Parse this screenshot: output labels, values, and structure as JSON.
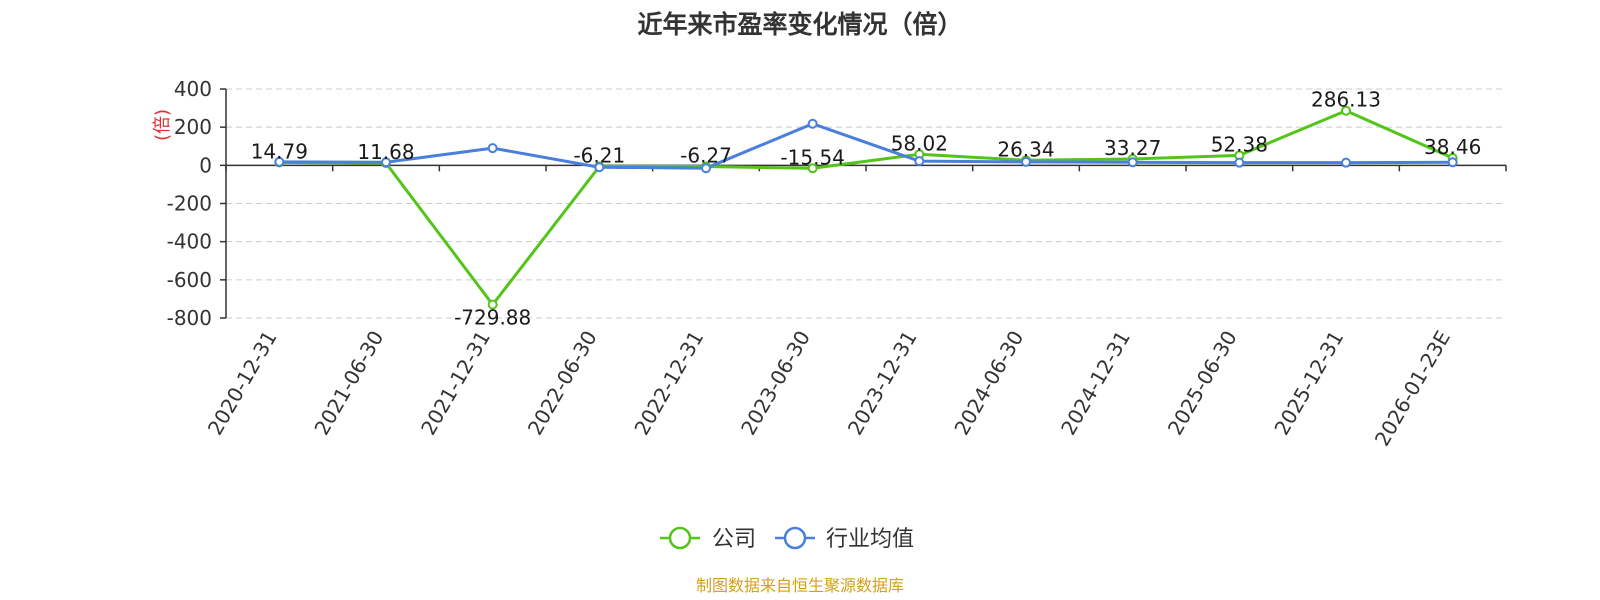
{
  "chart_data": {
    "type": "line",
    "title": "近年来市盈率变化情况（倍）",
    "ylabel": "(倍)",
    "xlabel": "",
    "categories": [
      "2020-12-31",
      "2021-06-30",
      "2021-12-31",
      "2022-06-30",
      "2022-12-31",
      "2023-06-30",
      "2023-12-31",
      "2024-06-30",
      "2024-12-31",
      "2025-06-30",
      "2025-12-31",
      "2026-01-23E"
    ],
    "ylim": [
      -800,
      400
    ],
    "yticks": [
      400,
      200,
      0,
      -200,
      -400,
      -600,
      -800
    ],
    "ytick_labels": [
      "400",
      "200",
      "0",
      "-200",
      "-400",
      "-600",
      "-800"
    ],
    "grid": true,
    "legend_position": "bottom-center",
    "series": [
      {
        "name": "公司",
        "color": "#52c41a",
        "values": [
          14.79,
          11.68,
          -729.88,
          -6.21,
          -6.27,
          -15.54,
          58.02,
          26.34,
          33.27,
          52.38,
          286.13,
          38.46
        ],
        "labels": [
          "14.79",
          "11.68",
          "-729.88",
          "-6.21",
          "-6.27",
          "-15.54",
          "58.02",
          "26.34",
          "33.27",
          "52.38",
          "286.13",
          "38.46"
        ]
      },
      {
        "name": "行业均值",
        "color": "#4a7fdb",
        "values": [
          18,
          16,
          90,
          -10,
          -15,
          218,
          22,
          18,
          16,
          14,
          14,
          16
        ]
      }
    ]
  },
  "source_text": "制图数据来自恒生聚源数据库",
  "colors": {
    "ylabel": "#e03030",
    "source": "#d4a017",
    "axis": "#333333",
    "grid": "#cccccc"
  }
}
